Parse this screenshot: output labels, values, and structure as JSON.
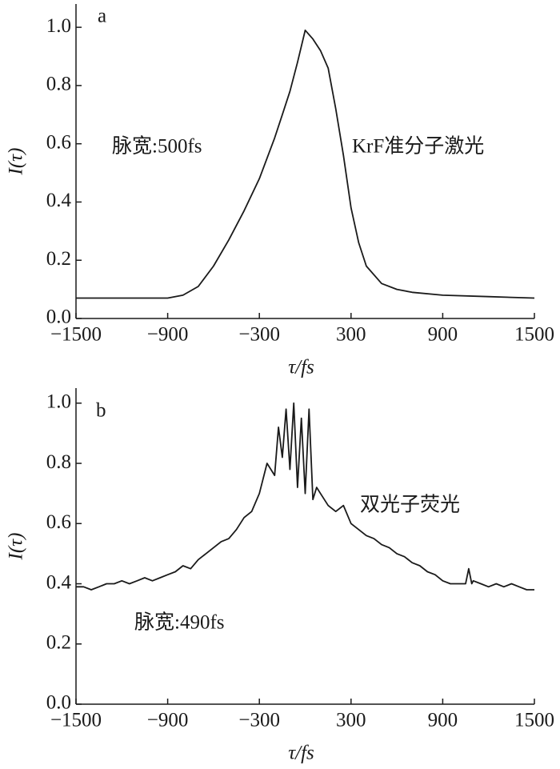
{
  "chart_data": [
    {
      "type": "line",
      "label": "a",
      "color": "#1a1a1a",
      "xlabel": "τ/fs",
      "ylabel": "I(τ)",
      "annotations": [
        "脉宽:500fs",
        "KrF准分子激光"
      ],
      "xlim": [
        -1500,
        1500
      ],
      "ylim": [
        0,
        1.08
      ],
      "xticks": [
        {
          "value": -1500,
          "label": "−1500"
        },
        {
          "value": -900,
          "label": "−900"
        },
        {
          "value": -300,
          "label": "−300"
        },
        300,
        900,
        1500
      ],
      "yticks": [
        {
          "value": 0,
          "label": "0.0"
        },
        0.2,
        0.4,
        0.6,
        0.8,
        {
          "value": 1,
          "label": "1.0"
        }
      ],
      "x": [
        -1500,
        -1300,
        -1100,
        -900,
        -800,
        -700,
        -600,
        -500,
        -400,
        -300,
        -200,
        -150,
        -100,
        -50,
        0,
        50,
        100,
        150,
        200,
        250,
        300,
        350,
        400,
        500,
        600,
        700,
        900,
        1200,
        1500
      ],
      "values": [
        0.07,
        0.07,
        0.07,
        0.07,
        0.08,
        0.11,
        0.18,
        0.27,
        0.37,
        0.48,
        0.62,
        0.7,
        0.78,
        0.88,
        0.99,
        0.96,
        0.92,
        0.86,
        0.72,
        0.56,
        0.38,
        0.26,
        0.18,
        0.12,
        0.1,
        0.09,
        0.08,
        0.075,
        0.07
      ]
    },
    {
      "type": "line",
      "label": "b",
      "color": "#1a1a1a",
      "xlabel": "τ/fs",
      "ylabel": "I(τ)",
      "annotations": [
        "双光子荧光",
        "脉宽:490fs"
      ],
      "xlim": [
        -1500,
        1500
      ],
      "ylim": [
        0,
        1.05
      ],
      "xticks": [
        {
          "value": -1500,
          "label": "−1500"
        },
        {
          "value": -900,
          "label": "−900"
        },
        {
          "value": -300,
          "label": "−300"
        },
        300,
        900,
        1500
      ],
      "yticks": [
        {
          "value": 0,
          "label": "0.0"
        },
        0.2,
        0.4,
        0.6,
        0.8,
        {
          "value": 1,
          "label": "1.0"
        }
      ],
      "x": [
        -1500,
        -1450,
        -1400,
        -1350,
        -1300,
        -1250,
        -1200,
        -1150,
        -1100,
        -1050,
        -1000,
        -950,
        -900,
        -850,
        -800,
        -750,
        -700,
        -650,
        -600,
        -550,
        -500,
        -450,
        -400,
        -350,
        -300,
        -250,
        -200,
        -175,
        -150,
        -125,
        -100,
        -75,
        -50,
        -25,
        0,
        25,
        50,
        75,
        100,
        150,
        200,
        250,
        300,
        350,
        400,
        450,
        500,
        550,
        600,
        650,
        700,
        750,
        800,
        850,
        900,
        950,
        1000,
        1050,
        1070,
        1090,
        1100,
        1150,
        1200,
        1250,
        1300,
        1350,
        1400,
        1450,
        1500
      ],
      "values": [
        0.39,
        0.39,
        0.38,
        0.39,
        0.4,
        0.4,
        0.41,
        0.4,
        0.41,
        0.42,
        0.41,
        0.42,
        0.43,
        0.44,
        0.46,
        0.45,
        0.48,
        0.5,
        0.52,
        0.54,
        0.55,
        0.58,
        0.62,
        0.64,
        0.7,
        0.8,
        0.76,
        0.92,
        0.82,
        0.98,
        0.78,
        1.0,
        0.72,
        0.95,
        0.7,
        0.98,
        0.68,
        0.72,
        0.7,
        0.66,
        0.64,
        0.66,
        0.6,
        0.58,
        0.56,
        0.55,
        0.53,
        0.52,
        0.5,
        0.49,
        0.47,
        0.46,
        0.44,
        0.43,
        0.41,
        0.4,
        0.4,
        0.4,
        0.45,
        0.4,
        0.41,
        0.4,
        0.39,
        0.4,
        0.39,
        0.4,
        0.39,
        0.38,
        0.38
      ]
    }
  ]
}
